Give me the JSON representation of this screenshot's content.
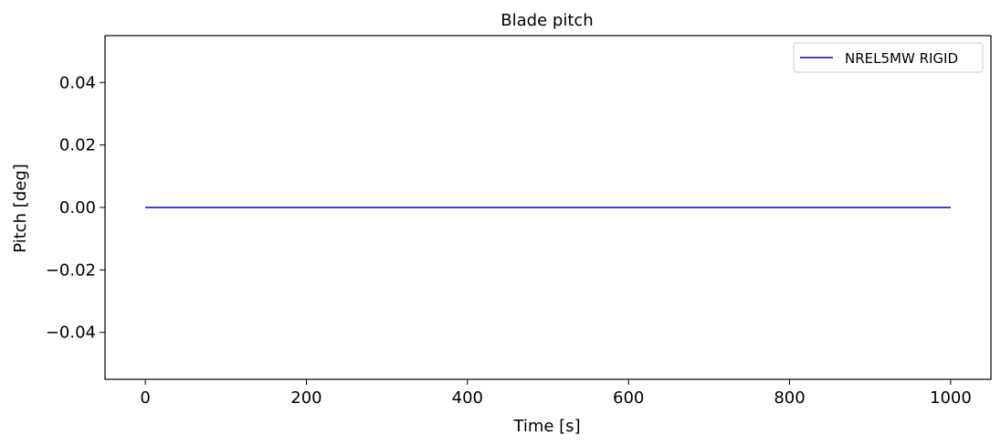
{
  "chart_data": {
    "type": "line",
    "title": "Blade pitch",
    "xlabel": "Time [s]",
    "ylabel": "Pitch [deg]",
    "xlim": [
      -50,
      1050
    ],
    "ylim": [
      -0.055,
      0.055
    ],
    "xticks": [
      0,
      200,
      400,
      600,
      800,
      1000
    ],
    "xtick_labels": [
      "0",
      "200",
      "400",
      "600",
      "800",
      "1000"
    ],
    "yticks": [
      0.04,
      0.02,
      0.0,
      -0.02,
      -0.04
    ],
    "ytick_labels": [
      "0.04",
      "0.02",
      "0.00",
      "−0.02",
      "−0.04"
    ],
    "grid": false,
    "legend_position": "top-right",
    "series": [
      {
        "name": "NREL5MW RIGID",
        "color": "#0000cc",
        "x": [
          0,
          1000
        ],
        "y": [
          0.0,
          0.0
        ]
      }
    ]
  }
}
